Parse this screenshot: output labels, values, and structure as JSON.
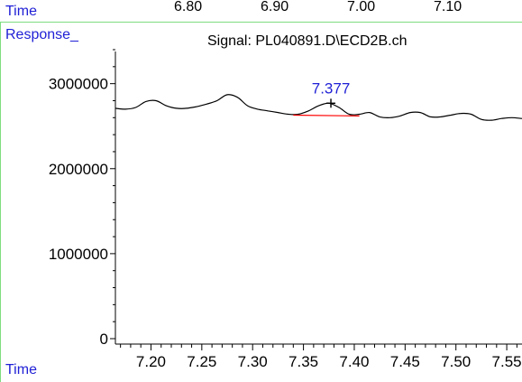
{
  "top_axis": {
    "label": "Time",
    "ticks": [
      "6.80",
      "6.90",
      "7.00",
      "7.10"
    ]
  },
  "response_label": "Response_",
  "bottom_axis_label": "Time",
  "colors": {
    "label_blue": "#1f1fd6",
    "divider_green": "#7fdc7f",
    "baseline_red": "#ff0000",
    "trace": "#000000"
  },
  "chart_data": {
    "type": "line",
    "title": "Signal: PL040891.D\\ECD2B.ch",
    "xlim": [
      7.165,
      7.565
    ],
    "ylim": [
      0,
      3400000
    ],
    "x_ticks": [
      "7.20",
      "7.25",
      "7.30",
      "7.35",
      "7.40",
      "7.45",
      "7.50",
      "7.55"
    ],
    "y_ticks": [
      "0",
      "1000000",
      "2000000",
      "3000000"
    ],
    "series": [
      {
        "x": [
          7.165,
          7.175,
          7.185,
          7.195,
          7.205,
          7.215,
          7.225,
          7.235,
          7.245,
          7.255,
          7.265,
          7.275,
          7.285,
          7.295,
          7.305,
          7.315,
          7.325,
          7.335,
          7.345,
          7.355,
          7.365,
          7.375,
          7.385,
          7.395,
          7.405,
          7.415,
          7.425,
          7.435,
          7.445,
          7.455,
          7.465,
          7.475,
          7.485,
          7.495,
          7.505,
          7.515,
          7.525,
          7.535,
          7.545,
          7.555,
          7.565
        ],
        "values": [
          2710000,
          2700000,
          2720000,
          2790000,
          2800000,
          2740000,
          2710000,
          2710000,
          2730000,
          2760000,
          2800000,
          2870000,
          2840000,
          2740000,
          2700000,
          2680000,
          2660000,
          2640000,
          2640000,
          2680000,
          2740000,
          2770000,
          2720000,
          2640000,
          2640000,
          2660000,
          2610000,
          2600000,
          2620000,
          2660000,
          2660000,
          2610000,
          2610000,
          2630000,
          2650000,
          2640000,
          2580000,
          2570000,
          2590000,
          2600000,
          2590000
        ]
      }
    ],
    "peak": {
      "label": "7.377",
      "x": 7.377,
      "y": 2770000,
      "baseline": {
        "x1": 7.34,
        "y1": 2630000,
        "x2": 7.405,
        "y2": 2620000
      }
    }
  }
}
